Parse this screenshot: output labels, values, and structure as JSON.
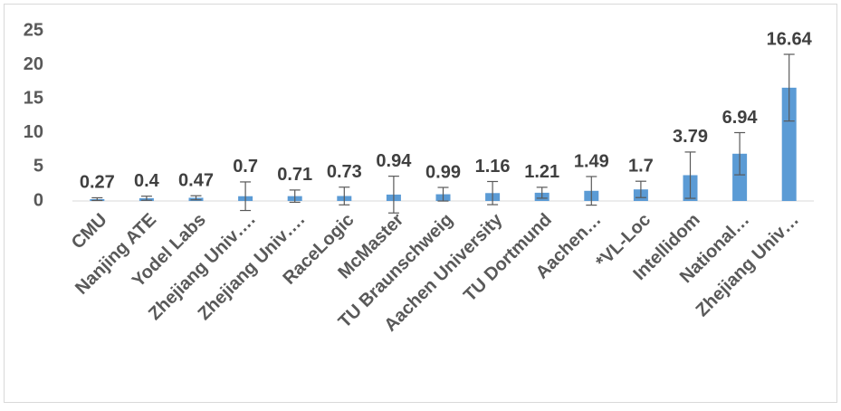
{
  "chart_data": {
    "type": "bar",
    "categories": [
      "CMU",
      "Nanjing ATE",
      "Yodel Labs",
      "Zhejiang Univ….",
      "Zhejiang Univ….",
      "RaceLogic",
      "McMaster",
      "TU Braunschweig",
      "Aachen University",
      "TU Dortmund",
      "Aachen…",
      "*VL-Loc",
      "Intellidom",
      "National…",
      "Zhejiang Univ…"
    ],
    "values": [
      0.27,
      0.4,
      0.47,
      0.7,
      0.71,
      0.73,
      0.94,
      0.99,
      1.16,
      1.21,
      1.49,
      1.7,
      3.79,
      6.94,
      16.64
    ],
    "errors": [
      0.2,
      0.3,
      0.3,
      2.1,
      0.9,
      1.3,
      2.7,
      1.0,
      1.7,
      0.8,
      2.1,
      1.2,
      3.4,
      3.1,
      4.9
    ],
    "color": "#5b9bd5",
    "ylim": [
      0,
      25
    ],
    "yticks": [
      0,
      5,
      10,
      15,
      20,
      25
    ],
    "grid": false
  }
}
